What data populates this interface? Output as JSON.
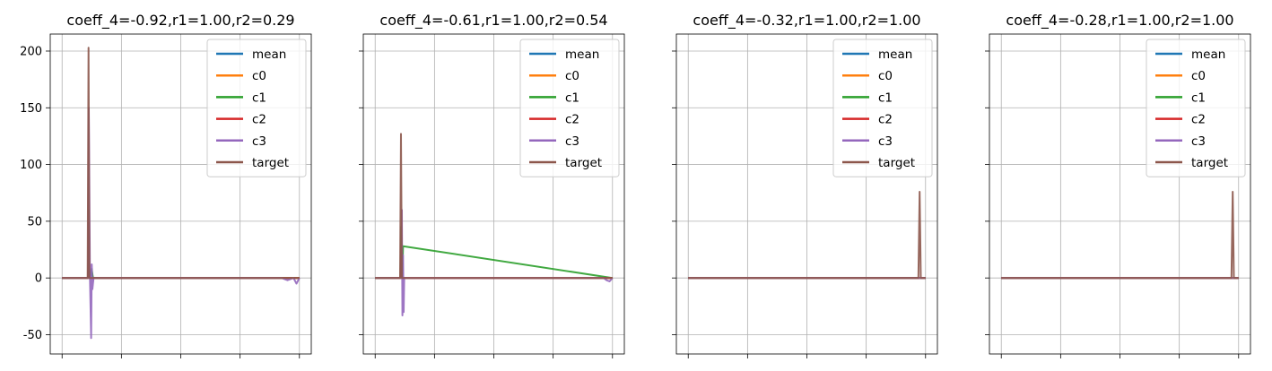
{
  "chart_data": [
    {
      "type": "line",
      "title": "coeff_4=-0.92,r1=1.00,r2=0.29",
      "ylim": [
        -67,
        215
      ],
      "yticks": [
        -50,
        0,
        50,
        100,
        150,
        200
      ],
      "xlim": [
        -0.2,
        4.2
      ],
      "xticks": [
        0,
        1,
        2,
        3,
        4
      ],
      "grid": true,
      "legend": "upper right",
      "series": [
        {
          "name": "mean",
          "color": "#1f77b4",
          "x": [
            0,
            0.44,
            0.45,
            0.46,
            0.5,
            0.52,
            2.0,
            4.0
          ],
          "y": [
            0,
            0,
            30,
            0,
            5,
            0,
            0,
            0
          ]
        },
        {
          "name": "c0",
          "color": "#ff7f0e",
          "x": [
            0,
            0.44,
            0.45,
            0.46,
            4.0
          ],
          "y": [
            0,
            0,
            40,
            0,
            0
          ]
        },
        {
          "name": "c1",
          "color": "#2ca02c",
          "x": [
            0,
            0.44,
            0.45,
            0.46,
            0.5,
            0.52,
            4.0
          ],
          "y": [
            0,
            0,
            60,
            0,
            8,
            0,
            0
          ]
        },
        {
          "name": "c2",
          "color": "#d62728",
          "x": [
            0,
            0.44,
            0.45,
            0.46,
            4.0
          ],
          "y": [
            0,
            0,
            50,
            0,
            0
          ]
        },
        {
          "name": "c3",
          "color": "#9467bd",
          "x": [
            0,
            0.44,
            0.45,
            0.47,
            0.49,
            0.5,
            0.51,
            0.53,
            2.0,
            2.3,
            3.7,
            3.8,
            3.9,
            3.95,
            4.0
          ],
          "y": [
            0,
            0,
            150,
            0,
            -53,
            12,
            -10,
            0,
            0,
            0,
            0,
            -2,
            0,
            -5,
            0
          ]
        },
        {
          "name": "target",
          "color": "#8c564b",
          "x": [
            0,
            0.43,
            0.445,
            0.46,
            4.0
          ],
          "y": [
            0,
            0,
            203,
            0,
            0
          ]
        }
      ]
    },
    {
      "type": "line",
      "title": "coeff_4=-0.61,r1=1.00,r2=0.54",
      "ylim": [
        -67,
        215
      ],
      "yticks": [
        -50,
        0,
        50,
        100,
        150,
        200
      ],
      "xlim": [
        -0.2,
        4.2
      ],
      "xticks": [
        0,
        1,
        2,
        3,
        4
      ],
      "grid": true,
      "legend": "upper right",
      "series": [
        {
          "name": "mean",
          "color": "#1f77b4",
          "x": [
            0,
            0.43,
            0.44,
            0.45,
            4.0
          ],
          "y": [
            0,
            0,
            20,
            0,
            0
          ]
        },
        {
          "name": "c0",
          "color": "#ff7f0e",
          "x": [
            0,
            0.43,
            0.44,
            0.45,
            4.0
          ],
          "y": [
            0,
            0,
            25,
            0,
            0
          ]
        },
        {
          "name": "c1",
          "color": "#2ca02c",
          "x": [
            0,
            0.43,
            0.44,
            0.46,
            0.47,
            4.0
          ],
          "y": [
            0,
            0,
            45,
            0,
            28,
            0
          ]
        },
        {
          "name": "c2",
          "color": "#d62728",
          "x": [
            0,
            0.43,
            0.44,
            0.45,
            4.0
          ],
          "y": [
            0,
            0,
            30,
            0,
            0
          ]
        },
        {
          "name": "c3",
          "color": "#9467bd",
          "x": [
            0,
            0.44,
            0.45,
            0.46,
            0.47,
            0.48,
            0.49,
            3.85,
            3.9,
            3.95,
            4.0
          ],
          "y": [
            0,
            0,
            60,
            -33,
            20,
            -30,
            0,
            0,
            -2,
            -3,
            0
          ]
        },
        {
          "name": "target",
          "color": "#8c564b",
          "x": [
            0,
            0.42,
            0.435,
            0.45,
            4.0
          ],
          "y": [
            0,
            0,
            127,
            0,
            0
          ]
        }
      ]
    },
    {
      "type": "line",
      "title": "coeff_4=-0.32,r1=1.00,r2=1.00",
      "ylim": [
        -67,
        215
      ],
      "yticks": [
        -50,
        0,
        50,
        100,
        150,
        200
      ],
      "xlim": [
        -0.2,
        4.2
      ],
      "xticks": [
        0,
        1,
        2,
        3,
        4
      ],
      "grid": true,
      "legend": "upper right",
      "series": [
        {
          "name": "mean",
          "color": "#1f77b4",
          "x": [
            0,
            4.0
          ],
          "y": [
            0,
            0
          ]
        },
        {
          "name": "c0",
          "color": "#ff7f0e",
          "x": [
            0,
            4.0
          ],
          "y": [
            0,
            0
          ]
        },
        {
          "name": "c1",
          "color": "#2ca02c",
          "x": [
            0,
            4.0
          ],
          "y": [
            0,
            0
          ]
        },
        {
          "name": "c2",
          "color": "#d62728",
          "x": [
            0,
            4.0
          ],
          "y": [
            0,
            0
          ]
        },
        {
          "name": "c3",
          "color": "#9467bd",
          "x": [
            0,
            4.0
          ],
          "y": [
            0,
            0
          ]
        },
        {
          "name": "target",
          "color": "#8c564b",
          "x": [
            0,
            3.88,
            3.9,
            3.92,
            4.0
          ],
          "y": [
            0,
            0,
            76,
            0,
            0
          ]
        }
      ]
    },
    {
      "type": "line",
      "title": "coeff_4=-0.28,r1=1.00,r2=1.00",
      "ylim": [
        -67,
        215
      ],
      "yticks": [
        -50,
        0,
        50,
        100,
        150,
        200
      ],
      "xlim": [
        -0.2,
        4.2
      ],
      "xticks": [
        0,
        1,
        2,
        3,
        4
      ],
      "grid": true,
      "legend": "upper right",
      "series": [
        {
          "name": "mean",
          "color": "#1f77b4",
          "x": [
            0,
            4.0
          ],
          "y": [
            0,
            0
          ]
        },
        {
          "name": "c0",
          "color": "#ff7f0e",
          "x": [
            0,
            4.0
          ],
          "y": [
            0,
            0
          ]
        },
        {
          "name": "c1",
          "color": "#2ca02c",
          "x": [
            0,
            4.0
          ],
          "y": [
            0,
            0
          ]
        },
        {
          "name": "c2",
          "color": "#d62728",
          "x": [
            0,
            4.0
          ],
          "y": [
            0,
            0
          ]
        },
        {
          "name": "c3",
          "color": "#9467bd",
          "x": [
            0,
            4.0
          ],
          "y": [
            0,
            0
          ]
        },
        {
          "name": "target",
          "color": "#8c564b",
          "x": [
            0,
            3.88,
            3.9,
            3.92,
            4.0
          ],
          "y": [
            0,
            0,
            76,
            0,
            0
          ]
        }
      ]
    }
  ]
}
